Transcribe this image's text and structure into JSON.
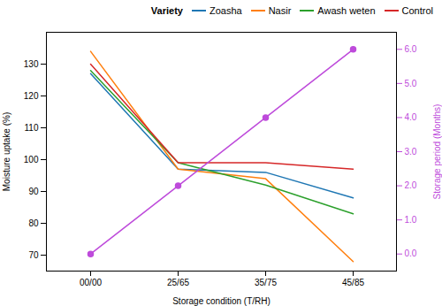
{
  "chart_data": {
    "type": "line",
    "categories": [
      "00/00",
      "25/65",
      "35/75",
      "45/85"
    ],
    "xlabel": "Storage condition (T/RH)",
    "ylabel": "Moisture uptake (%)",
    "y2label": "Storage period (Months)",
    "ylim": [
      65,
      140
    ],
    "yticks": [
      70,
      80,
      90,
      100,
      110,
      120,
      130
    ],
    "y2lim": [
      -0.5,
      6.5
    ],
    "y2ticks": [
      0,
      1,
      2,
      3,
      4,
      5,
      6
    ],
    "legend": "upper right",
    "legend_title": "Variety",
    "series": [
      {
        "name": "Zoasha",
        "color": "#1f77b4",
        "values": [
          127,
          97,
          96,
          88
        ]
      },
      {
        "name": "Nasir",
        "color": "#ff7f0e",
        "values": [
          134,
          97,
          94,
          68
        ]
      },
      {
        "name": "Awash weten",
        "color": "#2ca02c",
        "values": [
          128,
          99,
          92,
          83
        ]
      },
      {
        "name": "Control",
        "color": "#d62728",
        "values": [
          130,
          99,
          99,
          97
        ]
      },
      {
        "color": "#be4bdb",
        "values": [
          0,
          2,
          4,
          6
        ],
        "axis": "y2",
        "marker": "circle"
      }
    ]
  }
}
